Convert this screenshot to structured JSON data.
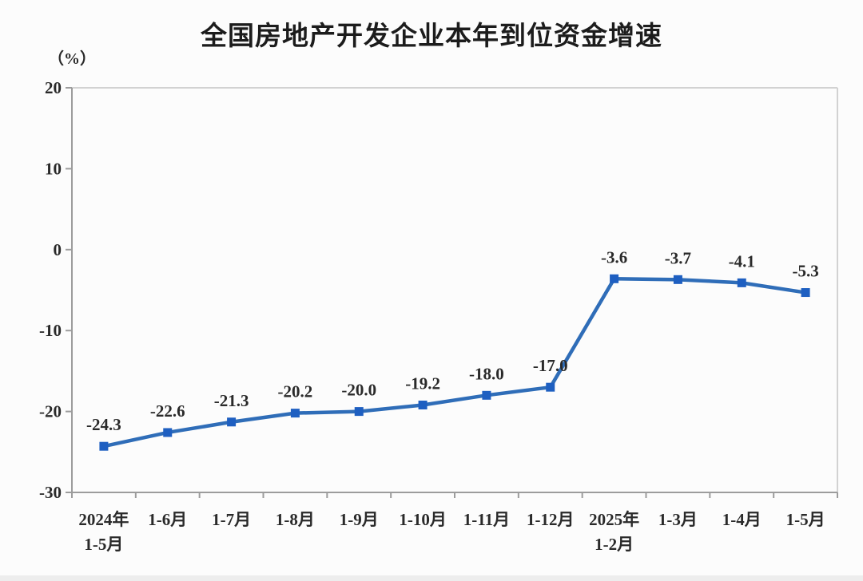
{
  "page": {
    "background": "#fcfcfc",
    "bottom_bar_color": "#ededed"
  },
  "chart_data": {
    "type": "line",
    "title": "全国房地产开发企业本年到位资金增速",
    "unit_label": "（%）",
    "categories": [
      [
        "2024年",
        "1-5月"
      ],
      [
        "1-6月"
      ],
      [
        "1-7月"
      ],
      [
        "1-8月"
      ],
      [
        "1-9月"
      ],
      [
        "1-10月"
      ],
      [
        "1-11月"
      ],
      [
        "1-12月"
      ],
      [
        "2025年",
        "1-2月"
      ],
      [
        "1-3月"
      ],
      [
        "1-4月"
      ],
      [
        "1-5月"
      ]
    ],
    "values": [
      -24.3,
      -22.6,
      -21.3,
      -20.2,
      -20.0,
      -19.2,
      -18.0,
      -17.0,
      -3.6,
      -3.7,
      -4.1,
      -5.3
    ],
    "labels": [
      "-24.3",
      "-22.6",
      "-21.3",
      "-20.2",
      "-20.0",
      "-19.2",
      "-18.0",
      "-17.0",
      "-3.6",
      "-3.7",
      "-4.1",
      "-5.3"
    ],
    "ylim": [
      -30,
      20
    ],
    "yticks": [
      20,
      10,
      0,
      -10,
      -20,
      -30
    ],
    "grid": false,
    "legend": "none",
    "marker_shape": "square",
    "colors": {
      "line": "#2f6db8",
      "marker": "#1e5fc1",
      "axis": "#9c9c9c",
      "border": "#d2d2d2",
      "text": "#2a2a2a",
      "title": "#1c1c1c"
    }
  }
}
